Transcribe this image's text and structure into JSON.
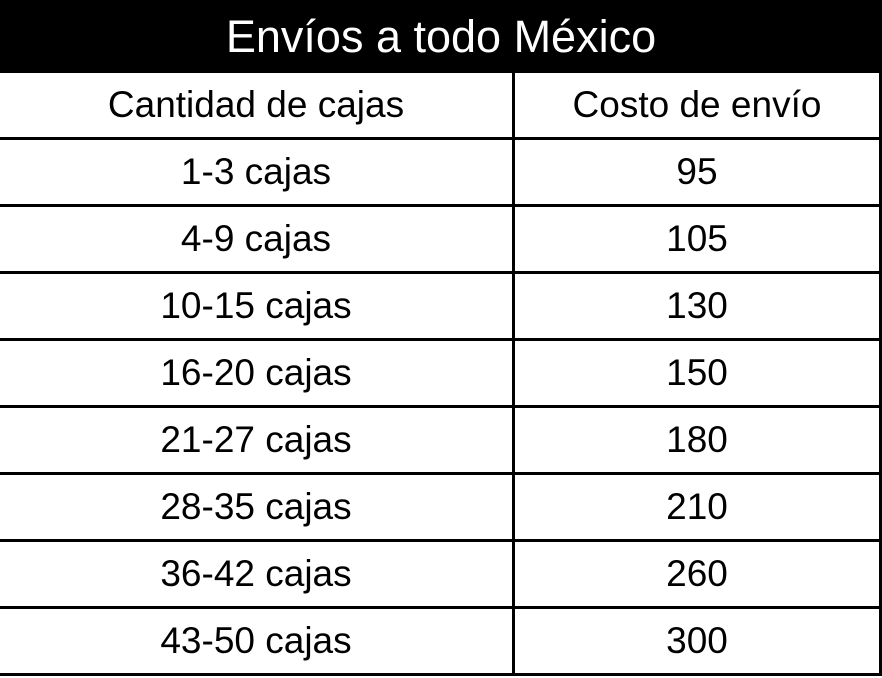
{
  "title": "Envíos a todo México",
  "table": {
    "headers": [
      "Cantidad de cajas",
      "Costo de envío"
    ],
    "rows": [
      [
        "1-3 cajas",
        "95"
      ],
      [
        "4-9 cajas",
        "105"
      ],
      [
        "10-15 cajas",
        "130"
      ],
      [
        "16-20 cajas",
        "150"
      ],
      [
        "21-27 cajas",
        "180"
      ],
      [
        "28-35 cajas",
        "210"
      ],
      [
        "36-42 cajas",
        "260"
      ],
      [
        "43-50 cajas",
        "300"
      ]
    ]
  }
}
